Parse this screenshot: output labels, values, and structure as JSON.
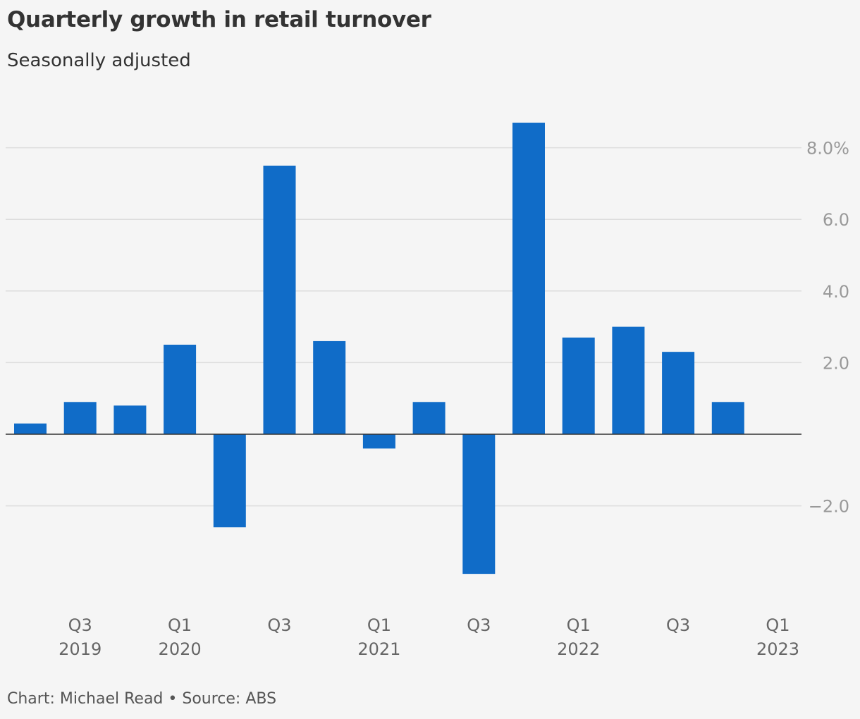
{
  "chart_data": {
    "type": "bar",
    "title": "Quarterly growth in retail turnover",
    "subtitle": "Seasonally adjusted",
    "xlabel": "",
    "ylabel": "",
    "categories": [
      "Q2 2019",
      "Q3 2019",
      "Q4 2019",
      "Q1 2020",
      "Q2 2020",
      "Q3 2020",
      "Q4 2020",
      "Q1 2021",
      "Q2 2021",
      "Q3 2021",
      "Q4 2021",
      "Q1 2022",
      "Q2 2022",
      "Q3 2022",
      "Q4 2022",
      "Q1 2023"
    ],
    "values": [
      0.3,
      0.9,
      0.8,
      2.5,
      -2.6,
      7.5,
      2.6,
      -0.4,
      0.9,
      -3.9,
      8.7,
      2.7,
      3.0,
      2.3,
      0.9,
      null
    ],
    "ylim": [
      -4.5,
      9.5
    ],
    "yticks": [
      {
        "value": 8,
        "label": "8.0%"
      },
      {
        "value": 6,
        "label": "6.0"
      },
      {
        "value": 4,
        "label": "4.0"
      },
      {
        "value": 2,
        "label": "2.0"
      },
      {
        "value": -2,
        "label": "−2.0"
      }
    ],
    "xticks": [
      {
        "index": 1,
        "quarter": "Q3",
        "year": "2019"
      },
      {
        "index": 3,
        "quarter": "Q1",
        "year": "2020"
      },
      {
        "index": 5,
        "quarter": "Q3",
        "year": ""
      },
      {
        "index": 7,
        "quarter": "Q1",
        "year": "2021"
      },
      {
        "index": 9,
        "quarter": "Q3",
        "year": ""
      },
      {
        "index": 11,
        "quarter": "Q1",
        "year": "2022"
      },
      {
        "index": 13,
        "quarter": "Q3",
        "year": ""
      },
      {
        "index": 15,
        "quarter": "Q1",
        "year": "2023"
      }
    ],
    "grid": true,
    "bar_color": "#106cc8",
    "grid_color": "#dddddd",
    "zero_line_color": "#333333"
  },
  "footer": "Chart: Michael Read • Source: ABS"
}
